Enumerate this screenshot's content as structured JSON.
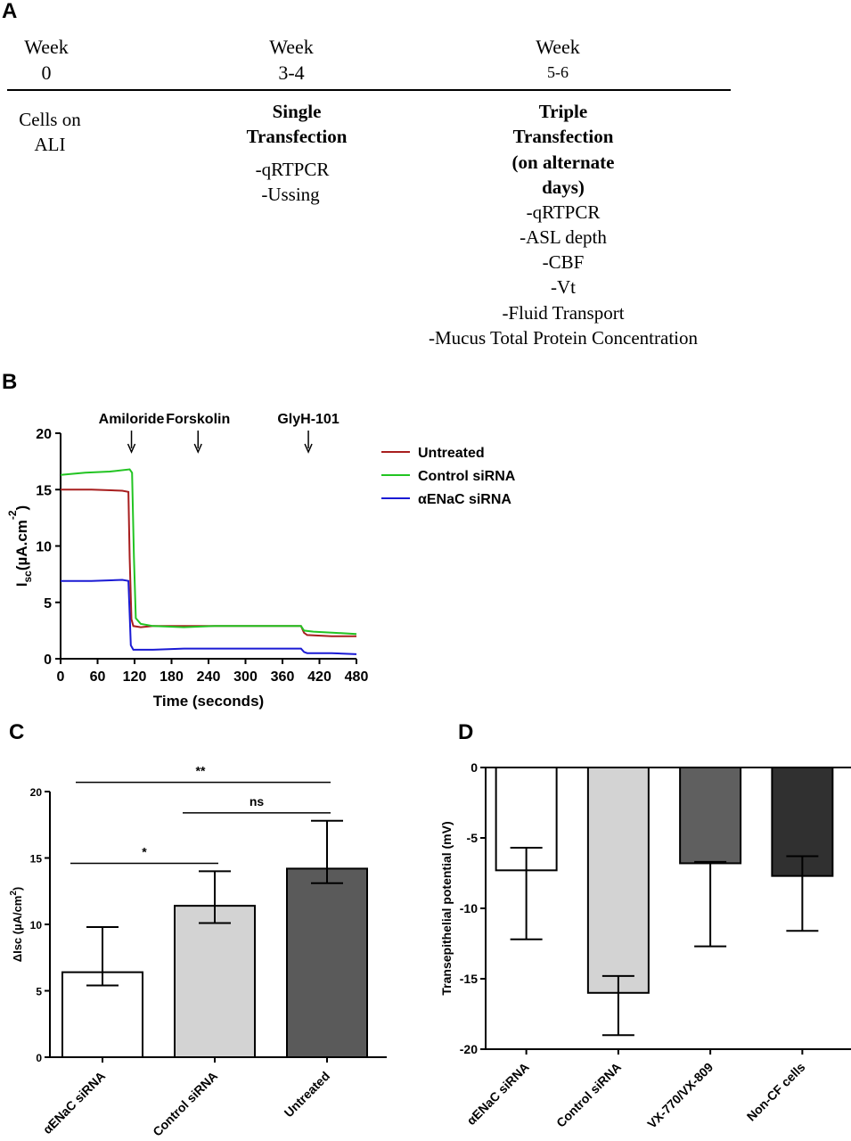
{
  "panel_a": {
    "letter": "A",
    "columns": [
      {
        "week_label": "Week",
        "week_value": "0",
        "heading": [],
        "items": [
          "Cells on",
          "ALI"
        ]
      },
      {
        "week_label": "Week",
        "week_value": "3-4",
        "heading": [
          "Single",
          "Transfection"
        ],
        "items": [
          "-qRTPCR",
          "-Ussing"
        ]
      },
      {
        "week_label": "Week",
        "week_value": "5-6",
        "heading": [
          "Triple",
          "Transfection",
          "(on alternate",
          "days)"
        ],
        "items": [
          "-qRTPCR",
          "-ASL depth",
          "-CBF",
          "-Vt",
          "-Fluid Transport",
          "-Mucus Total Protein Concentration"
        ]
      }
    ]
  },
  "chart_data": [
    {
      "panel": "B",
      "type": "line",
      "xlabel": "Time (seconds)",
      "ylabel": "I",
      "ylabel_sub": "sc",
      "ylabel_unit": "(µA.cm",
      "ylabel_sup": "-2",
      "ylabel_close": ")",
      "xlim": [
        0,
        480
      ],
      "ylim": [
        0,
        20
      ],
      "xticks": [
        0,
        60,
        120,
        180,
        240,
        300,
        360,
        420,
        480
      ],
      "yticks": [
        0,
        5,
        10,
        15,
        20
      ],
      "grid": false,
      "legend_position": "right",
      "annotations": [
        {
          "label": "Amiloride",
          "x": 115
        },
        {
          "label": "Forskolin",
          "x": 223
        },
        {
          "label": "GlyH-101",
          "x": 402
        }
      ],
      "series": [
        {
          "name": "Untreated",
          "color": "#a81e1e",
          "points": [
            [
              0,
              15.0
            ],
            [
              50,
              15.0
            ],
            [
              100,
              14.9
            ],
            [
              110,
              14.8
            ],
            [
              112,
              9
            ],
            [
              115,
              3.5
            ],
            [
              118,
              2.9
            ],
            [
              130,
              2.8
            ],
            [
              150,
              2.9
            ],
            [
              200,
              2.9
            ],
            [
              250,
              2.9
            ],
            [
              300,
              2.9
            ],
            [
              350,
              2.9
            ],
            [
              390,
              2.9
            ],
            [
              395,
              2.3
            ],
            [
              400,
              2.1
            ],
            [
              440,
              2.0
            ],
            [
              480,
              2.0
            ]
          ]
        },
        {
          "name": "Control siRNA",
          "color": "#22c422",
          "points": [
            [
              0,
              16.3
            ],
            [
              40,
              16.5
            ],
            [
              80,
              16.6
            ],
            [
              112,
              16.8
            ],
            [
              116,
              16.5
            ],
            [
              119,
              9
            ],
            [
              122,
              3.6
            ],
            [
              130,
              3.1
            ],
            [
              150,
              2.9
            ],
            [
              200,
              2.8
            ],
            [
              250,
              2.9
            ],
            [
              300,
              2.9
            ],
            [
              350,
              2.9
            ],
            [
              390,
              2.9
            ],
            [
              395,
              2.5
            ],
            [
              410,
              2.4
            ],
            [
              480,
              2.2
            ]
          ]
        },
        {
          "name": "αENaC siRNA",
          "color": "#1a1ad4",
          "points": [
            [
              0,
              6.9
            ],
            [
              50,
              6.9
            ],
            [
              100,
              7.0
            ],
            [
              110,
              6.9
            ],
            [
              112,
              4.0
            ],
            [
              114,
              1.2
            ],
            [
              118,
              0.8
            ],
            [
              150,
              0.8
            ],
            [
              200,
              0.9
            ],
            [
              250,
              0.9
            ],
            [
              300,
              0.9
            ],
            [
              350,
              0.9
            ],
            [
              390,
              0.9
            ],
            [
              395,
              0.6
            ],
            [
              400,
              0.5
            ],
            [
              440,
              0.5
            ],
            [
              480,
              0.4
            ]
          ]
        }
      ]
    },
    {
      "panel": "C",
      "type": "bar",
      "ylabel": "ΔIsc (µA/cm",
      "ylabel_sup": "2",
      "ylabel_close": ")",
      "ylim": [
        0,
        20
      ],
      "yticks": [
        0,
        5,
        10,
        15,
        20
      ],
      "grid": false,
      "categories": [
        "αENaC siRNA",
        "Control siRNA",
        "Untreated"
      ],
      "values": [
        6.4,
        11.4,
        14.2
      ],
      "error_low": [
        5.4,
        10.1,
        13.1
      ],
      "error_high": [
        9.8,
        14.0,
        17.8
      ],
      "colors": [
        "#ffffff",
        "#d3d3d3",
        "#5a5a5a"
      ],
      "significance": [
        {
          "from": 0,
          "to": 2,
          "label": "**",
          "y": 20.7
        },
        {
          "from": 1,
          "to": 2,
          "label": "ns",
          "y": 18.4
        },
        {
          "from": 0,
          "to": 1,
          "label": "*",
          "y": 14.6
        }
      ]
    },
    {
      "panel": "D",
      "type": "bar",
      "ylabel": "Transepithelial potential (mV)",
      "ylim": [
        -20,
        0
      ],
      "yticks": [
        0,
        -5,
        -10,
        -15,
        -20
      ],
      "grid": false,
      "categories": [
        "αENaC siRNA",
        "Control siRNA",
        "VX-770/VX-809",
        "Non-CF cells"
      ],
      "values": [
        -7.3,
        -16.0,
        -6.8,
        -7.7
      ],
      "error_low": [
        -12.2,
        -19.0,
        -12.7,
        -11.6
      ],
      "error_high": [
        -5.7,
        -14.8,
        -6.7,
        -6.3
      ],
      "colors": [
        "#ffffff",
        "#d3d3d3",
        "#5f5f5f",
        "#303030"
      ]
    }
  ]
}
